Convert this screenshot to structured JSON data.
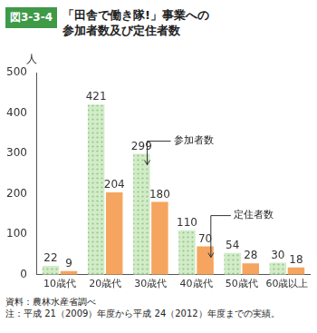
{
  "chart_data": {
    "type": "bar",
    "figure_label": "図3-3-4",
    "title": "「田舎で働き隊!」事業への\n参加者数及び定住者数",
    "y_label": "人",
    "categories": [
      "10歳代",
      "20歳代",
      "30歳代",
      "40歳代",
      "50歳代",
      "60歳以上"
    ],
    "series": [
      {
        "name": "参加者数",
        "color": "#d3ebc8",
        "values": [
          22,
          421,
          299,
          110,
          54,
          30
        ]
      },
      {
        "name": "定住者数",
        "color": "#f5a55f",
        "values": [
          9,
          204,
          180,
          70,
          28,
          18
        ]
      }
    ],
    "ylim": [
      0,
      500
    ],
    "yticks": [
      0,
      100,
      200,
      300,
      400,
      500
    ],
    "grid": false,
    "data_labels": true,
    "source": "資料：農林水産省調べ",
    "note": "注：平成 21（2009）年度から平成 24（2012）年度までの実績。"
  }
}
